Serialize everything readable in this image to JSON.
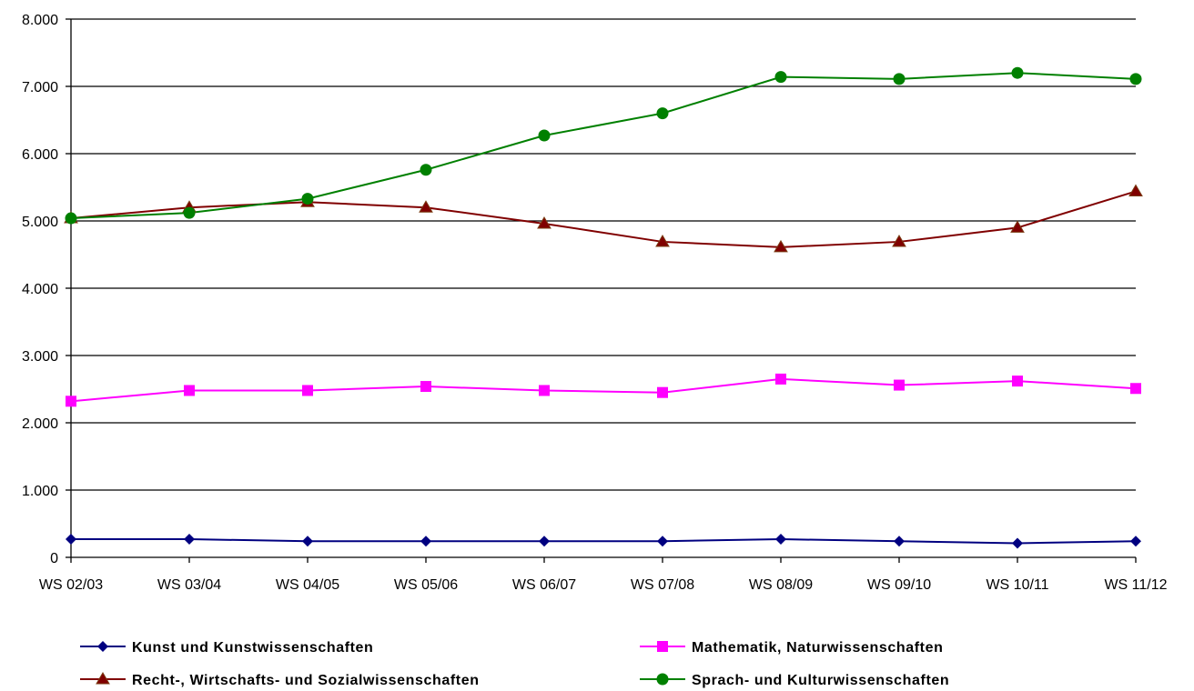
{
  "chart_data": {
    "type": "line",
    "categories": [
      "WS 02/03",
      "WS 03/04",
      "WS 04/05",
      "WS 05/06",
      "WS 06/07",
      "WS 07/08",
      "WS 08/09",
      "WS 09/10",
      "WS 10/11",
      "WS 11/12"
    ],
    "ylim": [
      0,
      8000
    ],
    "yticks": [
      0,
      1000,
      2000,
      3000,
      4000,
      5000,
      6000,
      7000,
      8000
    ],
    "ytick_labels": [
      "0",
      "1.000",
      "2.000",
      "3.000",
      "4.000",
      "5.000",
      "6.000",
      "7.000",
      "8.000"
    ],
    "grid": true,
    "legend_position": "bottom",
    "title": "",
    "xlabel": "",
    "ylabel": "",
    "series": [
      {
        "name": "Kunst und Kunstwissenschaften",
        "color": "#000080",
        "marker": "diamond",
        "values": [
          270,
          270,
          240,
          240,
          240,
          240,
          270,
          240,
          210,
          240
        ]
      },
      {
        "name": "Mathematik, Naturwissenschaften",
        "color": "#FF00FF",
        "marker": "square",
        "values": [
          2320,
          2480,
          2480,
          2540,
          2480,
          2450,
          2650,
          2560,
          2620,
          2510
        ]
      },
      {
        "name": "Recht-, Wirtschafts- und Sozialwissenschaften",
        "color": "#800000",
        "marker": "triangle",
        "values": [
          5040,
          5200,
          5280,
          5200,
          4960,
          4690,
          4610,
          4690,
          4900,
          5440
        ]
      },
      {
        "name": "Sprach- und Kulturwissenschaften",
        "color": "#008000",
        "marker": "circle",
        "values": [
          5040,
          5120,
          5330,
          5760,
          6270,
          6600,
          7140,
          7110,
          7200,
          7110
        ]
      }
    ]
  }
}
